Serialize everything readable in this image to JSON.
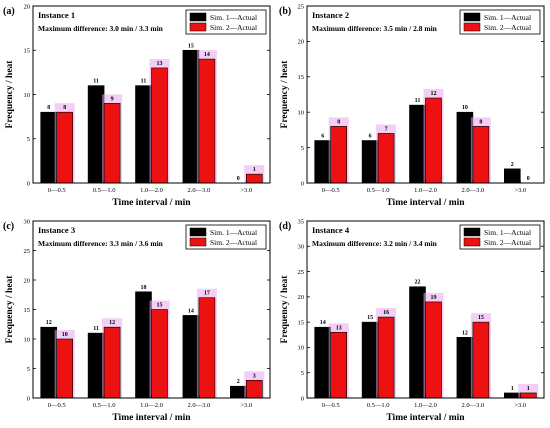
{
  "colors": {
    "sim1": "#000000",
    "sim2": "#ee1111",
    "highlight": "#e9a6ef"
  },
  "chart_data": [
    {
      "type": "bar",
      "panel": "(a)",
      "title": "Instance 1",
      "subtitle": "Maximum difference:  3.0 min / 3.3 min",
      "xlabel": "Time interval / min",
      "ylabel": "Frequency / heat",
      "categories": [
        "0—0.5",
        "0.5—1.0",
        "1.0—2.0",
        "2.0—3.0",
        ">3.0"
      ],
      "ylim": [
        0,
        20
      ],
      "yticks": [
        0,
        5,
        10,
        15,
        20
      ],
      "legend_position": "top-right",
      "series": [
        {
          "name": "Sim. 1—Actual",
          "values": [
            8,
            11,
            11,
            15,
            0
          ]
        },
        {
          "name": "Sim. 2—Actual",
          "values": [
            8,
            9,
            13,
            14,
            1
          ]
        }
      ]
    },
    {
      "type": "bar",
      "panel": "(b)",
      "title": "Instance 2",
      "subtitle": "Maximum difference:  3.5 min / 2.8 min",
      "xlabel": "Time interval / min",
      "ylabel": "Frequency / heat",
      "categories": [
        "0—0.5",
        "0.5—1.0",
        "1.0—2.0",
        "2.0—3.0",
        ">3.0"
      ],
      "ylim": [
        0,
        25
      ],
      "yticks": [
        0,
        5,
        10,
        15,
        20,
        25
      ],
      "legend_position": "top-right",
      "series": [
        {
          "name": "Sim. 1—Actual",
          "values": [
            6,
            6,
            11,
            10,
            2
          ]
        },
        {
          "name": "Sim. 2—Actual",
          "values": [
            8,
            7,
            12,
            8,
            0
          ]
        }
      ]
    },
    {
      "type": "bar",
      "panel": "(c)",
      "title": "Instance 3",
      "subtitle": "Maximum difference:  3.3 min / 3.6 min",
      "xlabel": "Time interval / min",
      "ylabel": "Frequency / heat",
      "categories": [
        "0—0.5",
        "0.5—1.0",
        "1.0—2.0",
        "2.0—3.0",
        ">3.0"
      ],
      "ylim": [
        0,
        30
      ],
      "yticks": [
        0,
        5,
        10,
        15,
        20,
        25,
        30
      ],
      "legend_position": "top-right",
      "series": [
        {
          "name": "Sim. 1—Actual",
          "values": [
            12,
            11,
            18,
            14,
            2
          ]
        },
        {
          "name": "Sim. 2—Actual",
          "values": [
            10,
            12,
            15,
            17,
            3
          ]
        }
      ]
    },
    {
      "type": "bar",
      "panel": "(d)",
      "title": "Instance 4",
      "subtitle": "Maximum difference:  3.2 min / 3.4 min",
      "xlabel": "Time interval / min",
      "ylabel": "Frequency / heat",
      "categories": [
        "0—0.5",
        "0.5—1.0",
        "1.0—2.0",
        "2.0—3.0",
        ">3.0"
      ],
      "ylim": [
        0,
        35
      ],
      "yticks": [
        0,
        5,
        10,
        15,
        20,
        25,
        30,
        35
      ],
      "legend_position": "top-right",
      "series": [
        {
          "name": "Sim. 1—Actual",
          "values": [
            14,
            15,
            22,
            12,
            1
          ]
        },
        {
          "name": "Sim. 2—Actual",
          "values": [
            13,
            16,
            19,
            15,
            1
          ]
        }
      ]
    }
  ]
}
